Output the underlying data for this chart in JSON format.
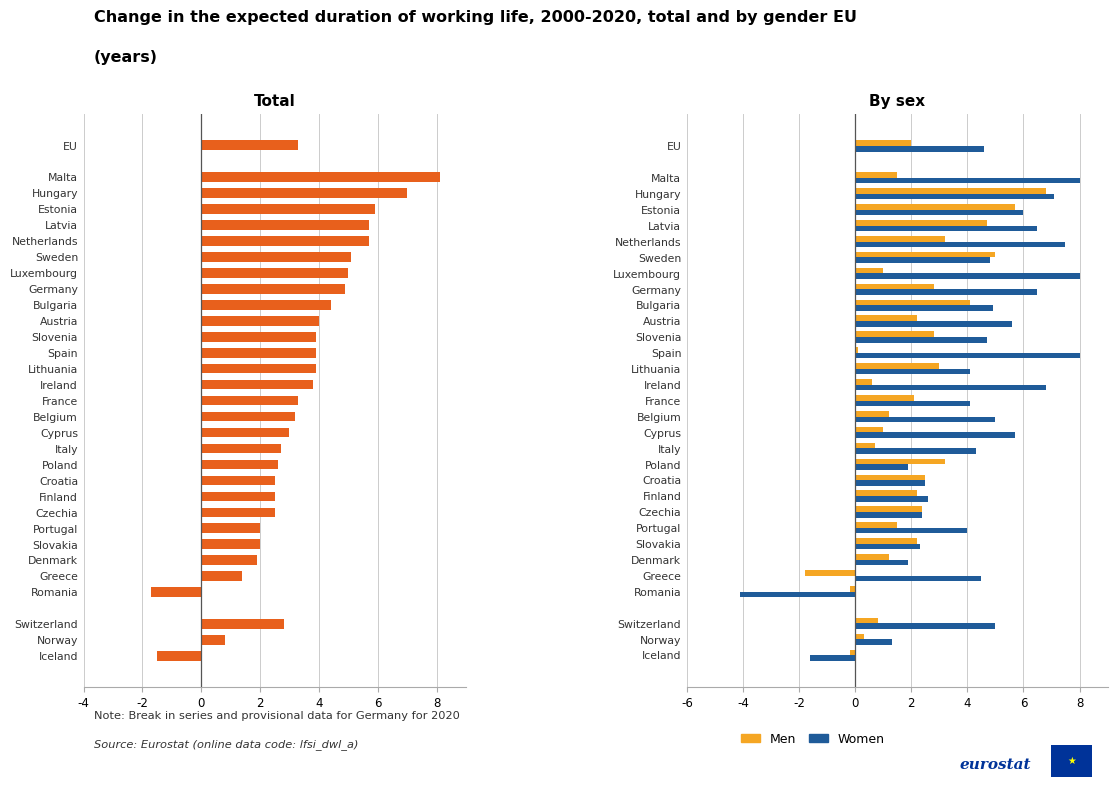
{
  "title": "Change in the expected duration of working life, 2000-2020, total and by gender EU",
  "title2": "(years)",
  "note": "Note: Break in series and provisional data for Germany for 2020",
  "source": "Source: Eurostat (online data code: lfsi_dwl_a)",
  "countries": [
    "EU",
    "",
    "Malta",
    "Hungary",
    "Estonia",
    "Latvia",
    "Netherlands",
    "Sweden",
    "Luxembourg",
    "Germany",
    "Bulgaria",
    "Austria",
    "Slovenia",
    "Spain",
    "Lithuania",
    "Ireland",
    "France",
    "Belgium",
    "Cyprus",
    "Italy",
    "Poland",
    "Croatia",
    "Finland",
    "Czechia",
    "Portugal",
    "Slovakia",
    "Denmark",
    "Greece",
    "Romania",
    "",
    "Switzerland",
    "Norway",
    "Iceland"
  ],
  "total_values": [
    3.3,
    null,
    8.1,
    7.0,
    5.9,
    5.7,
    5.7,
    5.1,
    5.0,
    4.9,
    4.4,
    4.0,
    3.9,
    3.9,
    3.9,
    3.8,
    3.3,
    3.2,
    3.0,
    2.7,
    2.6,
    2.5,
    2.5,
    2.5,
    2.0,
    2.0,
    1.9,
    1.4,
    -1.7,
    null,
    2.8,
    0.8,
    -1.5
  ],
  "men_values": [
    2.0,
    null,
    1.5,
    6.8,
    5.7,
    4.7,
    3.2,
    5.0,
    1.0,
    2.8,
    4.1,
    2.2,
    2.8,
    0.1,
    3.0,
    0.6,
    2.1,
    1.2,
    1.0,
    0.7,
    3.2,
    2.5,
    2.2,
    2.4,
    1.5,
    2.2,
    1.2,
    -1.8,
    -0.2,
    null,
    0.8,
    0.3,
    -0.2
  ],
  "women_values": [
    4.6,
    null,
    8.0,
    7.1,
    6.0,
    6.5,
    7.5,
    4.8,
    8.0,
    6.5,
    4.9,
    5.6,
    4.7,
    8.0,
    4.1,
    6.8,
    4.1,
    5.0,
    5.7,
    4.3,
    1.9,
    2.5,
    2.6,
    2.4,
    4.0,
    2.3,
    1.9,
    4.5,
    -4.1,
    null,
    5.0,
    1.3,
    -1.6
  ],
  "orange_color": "#E8601C",
  "men_color": "#F5A623",
  "women_color": "#1F5B99",
  "bg_color": "#FFFFFF",
  "total_xlim": [
    -4,
    9
  ],
  "sex_xlim": [
    -6,
    9
  ],
  "total_xticks": [
    -4,
    -2,
    0,
    2,
    4,
    6,
    8
  ],
  "sex_xticks": [
    -6,
    -4,
    -2,
    0,
    2,
    4,
    6,
    8
  ]
}
